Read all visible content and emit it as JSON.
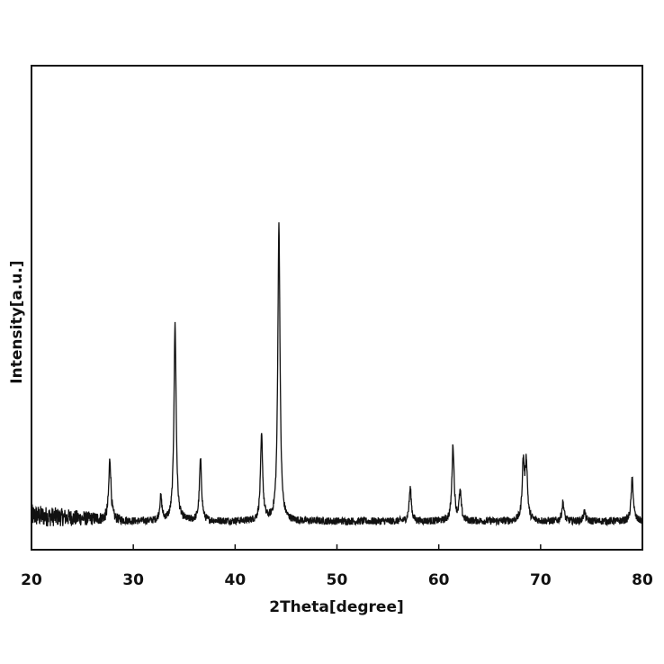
{
  "chart_data": {
    "type": "line",
    "xlabel": "2Theta[degree]",
    "ylabel": "Intensity[a.u.]",
    "xlim": [
      20,
      80
    ],
    "x_ticks": [
      20,
      30,
      40,
      50,
      60,
      70,
      80
    ],
    "y_tick_labels_shown": false,
    "grid": false,
    "line_color": "#111111",
    "baseline_intensity": 3,
    "y_units": "relative intensity (0-100)",
    "peaks": [
      {
        "x": 27.7,
        "y": 13
      },
      {
        "x": 32.7,
        "y": 5
      },
      {
        "x": 34.1,
        "y": 42
      },
      {
        "x": 36.6,
        "y": 13
      },
      {
        "x": 42.6,
        "y": 18
      },
      {
        "x": 44.3,
        "y": 63
      },
      {
        "x": 57.2,
        "y": 7
      },
      {
        "x": 61.4,
        "y": 16
      },
      {
        "x": 62.1,
        "y": 6
      },
      {
        "x": 68.3,
        "y": 12
      },
      {
        "x": 68.6,
        "y": 12
      },
      {
        "x": 72.2,
        "y": 4
      },
      {
        "x": 74.3,
        "y": 2
      },
      {
        "x": 79.0,
        "y": 9
      }
    ]
  }
}
